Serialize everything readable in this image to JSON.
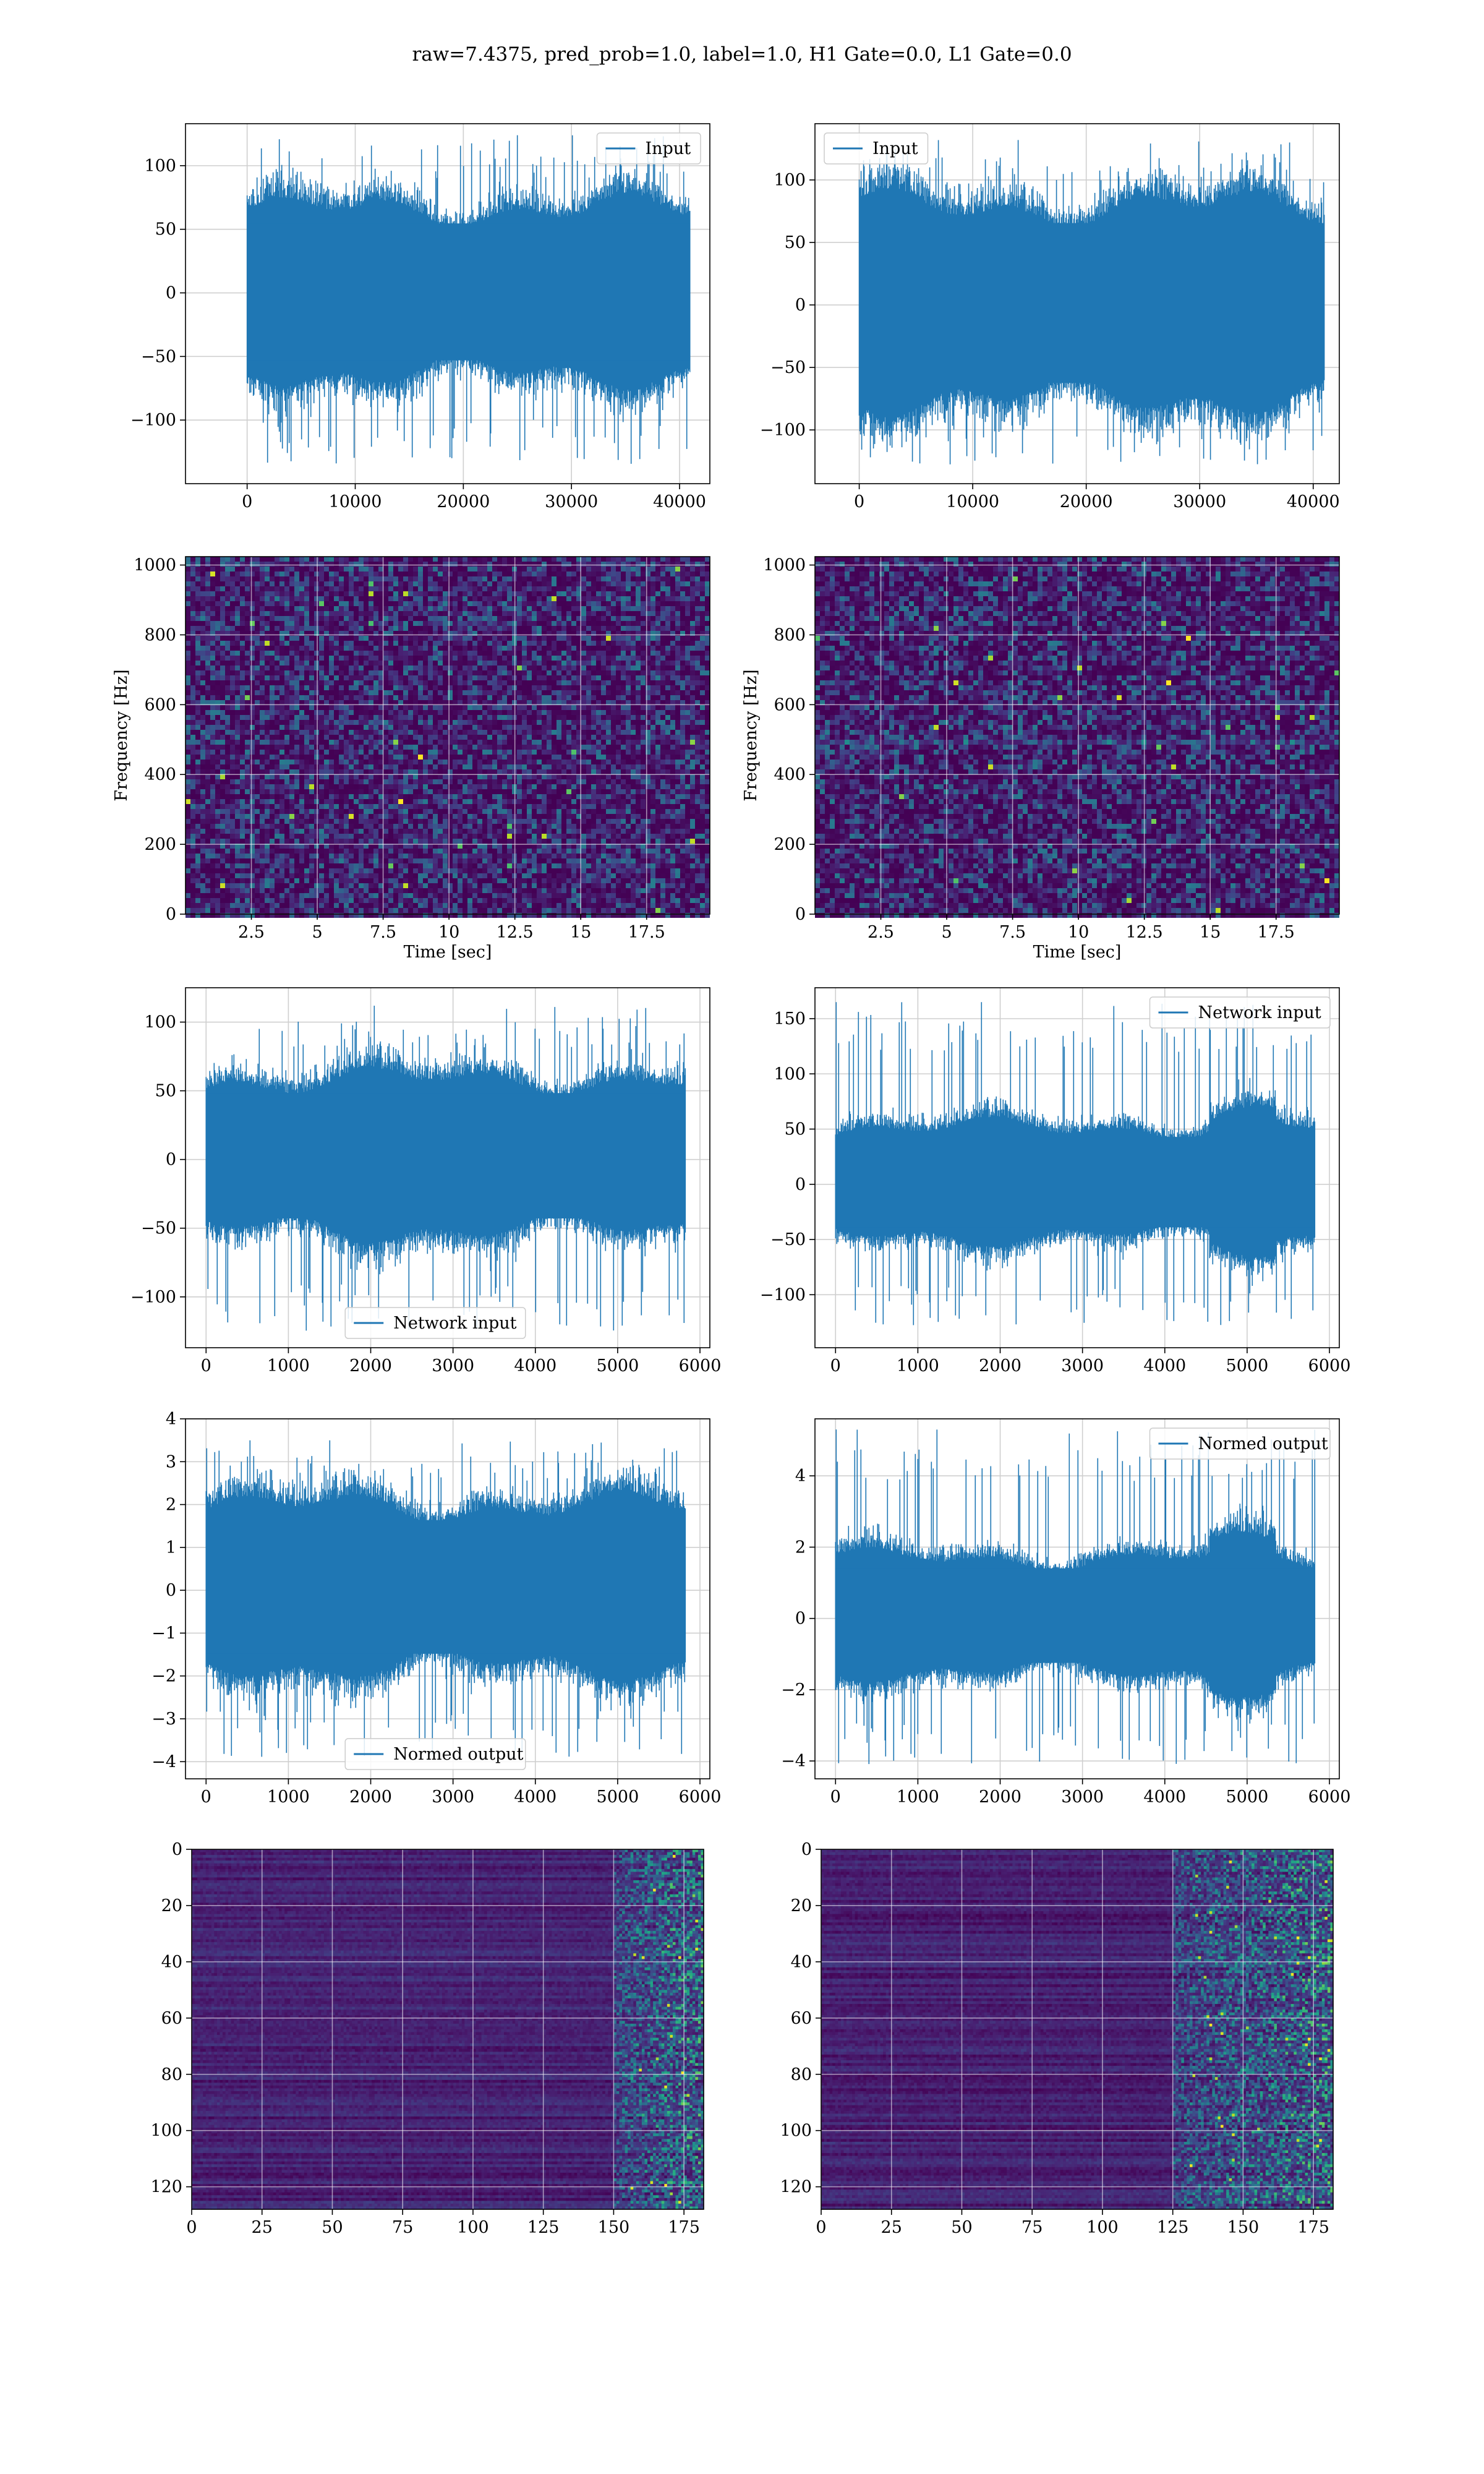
{
  "figure": {
    "title": "raw=7.4375, pred_prob=1.0, label=1.0, H1 Gate=0.0, L1 Gate=0.0",
    "line_color": "#1f77b4"
  },
  "chart_data": [
    {
      "id": "h1-input",
      "type": "line",
      "title": "",
      "xlabel": "",
      "ylabel": "",
      "legend": {
        "label": "Input",
        "position": "top-right"
      },
      "xlim": [
        -5700,
        42800
      ],
      "ylim": [
        -150,
        133
      ],
      "xticks": [
        0,
        10000,
        20000,
        30000,
        40000
      ],
      "yticks": [
        -100,
        -50,
        0,
        50,
        100
      ],
      "grid": true,
      "series": [
        {
          "name": "Input",
          "n_points": 40960,
          "envelope_typical": [
            -68,
            70
          ],
          "envelope_peak": [
            -135,
            125
          ]
        }
      ]
    },
    {
      "id": "l1-input",
      "type": "line",
      "title": "",
      "xlabel": "",
      "ylabel": "",
      "legend": {
        "label": "Input",
        "position": "top-left"
      },
      "xlim": [
        -3900,
        42300
      ],
      "ylim": [
        -143,
        145
      ],
      "xticks": [
        0,
        10000,
        20000,
        30000,
        40000
      ],
      "yticks": [
        -100,
        -50,
        0,
        50,
        100
      ],
      "grid": true,
      "series": [
        {
          "name": "Input",
          "n_points": 40960,
          "envelope_typical": [
            -80,
            84
          ],
          "envelope_peak": [
            -128,
            132
          ]
        }
      ]
    },
    {
      "id": "h1-spectrogram",
      "type": "heatmap",
      "title": "",
      "xlabel": "Time [sec]",
      "ylabel": "Frequency [Hz]",
      "xlim": [
        0,
        19.9
      ],
      "ylim": [
        0,
        1024
      ],
      "xticks": [
        2.5,
        5.0,
        7.5,
        10.0,
        12.5,
        15.0,
        17.5
      ],
      "yticks": [
        0,
        200,
        400,
        600,
        800,
        1000
      ],
      "grid": true,
      "colormap": "viridis"
    },
    {
      "id": "l1-spectrogram",
      "type": "heatmap",
      "title": "",
      "xlabel": "Time [sec]",
      "ylabel": "Frequency [Hz]",
      "xlim": [
        0,
        19.9
      ],
      "ylim": [
        0,
        1024
      ],
      "xticks": [
        2.5,
        5.0,
        7.5,
        10.0,
        12.5,
        15.0,
        17.5
      ],
      "yticks": [
        0,
        200,
        400,
        600,
        800,
        1000
      ],
      "grid": true,
      "colormap": "viridis"
    },
    {
      "id": "h1-network-input",
      "type": "line",
      "title": "",
      "xlabel": "",
      "ylabel": "",
      "legend": {
        "label": "Network input",
        "position": "bottom-center"
      },
      "xlim": [
        -250,
        6120
      ],
      "ylim": [
        -137,
        125
      ],
      "xticks": [
        0,
        1000,
        2000,
        3000,
        4000,
        5000,
        6000
      ],
      "yticks": [
        -100,
        -50,
        0,
        50,
        100
      ],
      "grid": true,
      "series": [
        {
          "name": "Network input",
          "n_points": 5820,
          "envelope_typical": [
            -55,
            62
          ],
          "envelope_peak": [
            -125,
            112
          ]
        }
      ]
    },
    {
      "id": "l1-network-input",
      "type": "line",
      "title": "",
      "xlabel": "",
      "ylabel": "",
      "legend": {
        "label": "Network input",
        "position": "top-right"
      },
      "xlim": [
        -250,
        6120
      ],
      "ylim": [
        -148,
        178
      ],
      "xticks": [
        0,
        1000,
        2000,
        3000,
        4000,
        5000,
        6000
      ],
      "yticks": [
        -100,
        -50,
        0,
        50,
        100,
        150
      ],
      "grid": true,
      "series": [
        {
          "name": "Network input",
          "n_points": 5820,
          "envelope_typical": [
            -50,
            55
          ],
          "envelope_peak": [
            -128,
            165
          ]
        }
      ]
    },
    {
      "id": "h1-normed-output",
      "type": "line",
      "title": "",
      "xlabel": "",
      "ylabel": "",
      "legend": {
        "label": "Normed output",
        "position": "bottom-center"
      },
      "xlim": [
        -250,
        6120
      ],
      "ylim": [
        -4.4,
        4.0
      ],
      "xticks": [
        0,
        1000,
        2000,
        3000,
        4000,
        5000,
        6000
      ],
      "yticks": [
        -4,
        -3,
        -2,
        -1,
        0,
        1,
        2,
        3,
        4
      ],
      "grid": true,
      "series": [
        {
          "name": "Normed output",
          "n_points": 5820,
          "envelope_typical": [
            -1.9,
            2.1
          ],
          "envelope_peak": [
            -3.9,
            3.5
          ]
        }
      ]
    },
    {
      "id": "l1-normed-output",
      "type": "line",
      "title": "",
      "xlabel": "",
      "ylabel": "",
      "legend": {
        "label": "Normed output",
        "position": "top-right"
      },
      "xlim": [
        -250,
        6120
      ],
      "ylim": [
        -4.5,
        5.6
      ],
      "xticks": [
        0,
        1000,
        2000,
        3000,
        4000,
        5000,
        6000
      ],
      "yticks": [
        -4,
        -2,
        0,
        2,
        4
      ],
      "grid": true,
      "series": [
        {
          "name": "Normed output",
          "n_points": 5820,
          "envelope_typical": [
            -1.6,
            1.8
          ],
          "envelope_peak": [
            -4.1,
            5.3
          ]
        }
      ]
    },
    {
      "id": "h1-feature-map",
      "type": "heatmap",
      "title": "",
      "xlabel": "",
      "ylabel": "",
      "xlim": [
        0,
        182
      ],
      "ylim": [
        128,
        0
      ],
      "xticks": [
        0,
        25,
        50,
        75,
        100,
        125,
        150,
        175
      ],
      "yticks": [
        0,
        20,
        40,
        60,
        80,
        100,
        120
      ],
      "grid": true,
      "colormap": "viridis",
      "active_columns_from": 150
    },
    {
      "id": "l1-feature-map",
      "type": "heatmap",
      "title": "",
      "xlabel": "",
      "ylabel": "",
      "xlim": [
        0,
        182
      ],
      "ylim": [
        128,
        0
      ],
      "xticks": [
        0,
        25,
        50,
        75,
        100,
        125,
        150,
        175
      ],
      "yticks": [
        0,
        20,
        40,
        60,
        80,
        100,
        120
      ],
      "grid": true,
      "colormap": "viridis",
      "active_columns_from": 125
    }
  ]
}
